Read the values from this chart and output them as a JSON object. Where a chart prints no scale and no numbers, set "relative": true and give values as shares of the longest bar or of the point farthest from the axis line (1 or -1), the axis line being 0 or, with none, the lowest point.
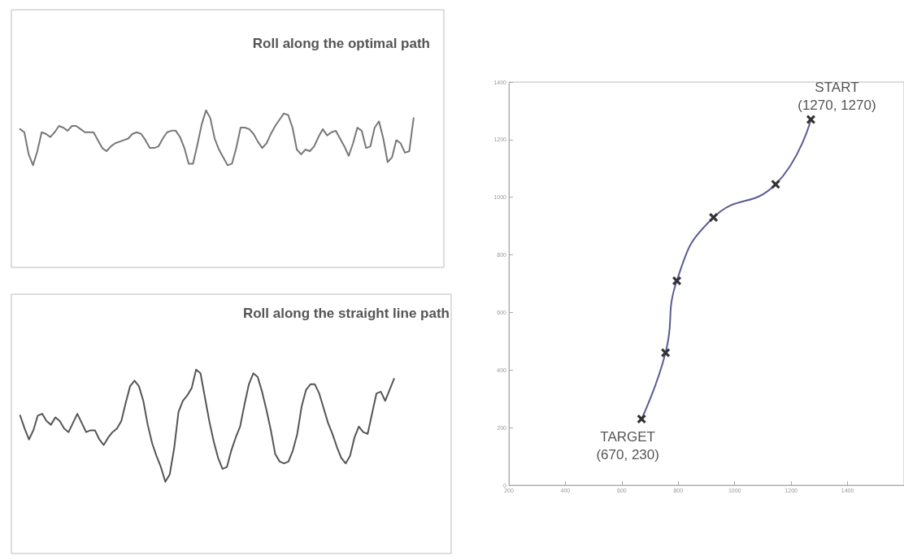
{
  "chart_data": [
    {
      "type": "line",
      "title": "Roll along the optimal path",
      "relative": true,
      "categories": [
        null,
        null,
        null,
        null,
        null,
        null,
        null,
        null,
        null,
        null,
        null,
        null,
        null,
        null,
        null,
        null,
        null,
        null,
        null,
        null,
        null,
        null,
        null,
        null,
        null,
        null,
        null,
        null,
        null,
        null,
        null,
        null,
        null,
        null,
        null,
        null,
        null,
        null,
        null,
        null,
        null,
        null,
        null,
        null,
        null,
        null,
        null,
        null,
        null,
        null,
        null,
        null,
        null,
        null,
        null,
        null,
        null,
        null,
        null,
        null,
        null,
        null,
        null,
        null,
        null,
        null,
        null,
        null,
        null,
        null,
        null,
        null,
        null,
        null,
        null,
        null,
        null,
        null,
        null,
        null,
        null,
        null,
        null,
        null,
        null,
        null,
        null,
        null,
        null,
        null,
        null,
        null,
        null,
        null,
        null,
        null,
        null,
        null,
        null,
        null,
        null
      ],
      "series": [
        {
          "color": "#777777",
          "values": [
            null,
            null,
            0.88,
            0.86,
            0.72,
            0.65,
            0.74,
            0.86,
            0.85,
            0.83,
            0.86,
            0.9,
            0.89,
            0.87,
            0.9,
            0.9,
            0.88,
            0.86,
            0.86,
            0.86,
            0.81,
            0.76,
            0.74,
            0.77,
            0.79,
            0.8,
            0.81,
            0.82,
            0.85,
            0.86,
            0.85,
            0.81,
            0.76,
            0.76,
            0.77,
            0.82,
            0.86,
            0.87,
            0.87,
            0.83,
            0.76,
            0.66,
            0.66,
            0.78,
            0.91,
            1.0,
            0.95,
            0.82,
            0.75,
            0.7,
            0.65,
            0.66,
            0.76,
            0.89,
            0.89,
            0.88,
            0.85,
            0.8,
            0.76,
            0.79,
            0.85,
            0.9,
            0.94,
            0.98,
            0.97,
            0.89,
            0.75,
            0.72,
            0.75,
            0.74,
            0.77,
            0.83,
            0.88,
            0.84,
            0.86,
            0.87,
            0.82,
            0.77,
            0.71,
            0.79,
            0.89,
            0.87,
            0.76,
            0.77,
            0.89,
            0.93,
            0.82,
            0.67,
            0.7,
            0.81,
            0.79,
            0.73,
            0.74,
            0.95,
            null,
            null,
            null,
            null,
            null,
            null,
            null
          ]
        }
      ]
    },
    {
      "type": "line",
      "title": "Roll along the straight line path",
      "relative": true,
      "categories": [
        null,
        null,
        null,
        null,
        null,
        null,
        null,
        null,
        null,
        null,
        null,
        null,
        null,
        null,
        null,
        null,
        null,
        null,
        null,
        null,
        null,
        null,
        null,
        null,
        null,
        null,
        null,
        null,
        null,
        null,
        null,
        null,
        null,
        null,
        null,
        null,
        null,
        null,
        null,
        null,
        null,
        null,
        null,
        null,
        null,
        null,
        null,
        null,
        null,
        null,
        null,
        null,
        null,
        null,
        null,
        null,
        null,
        null,
        null,
        null,
        null,
        null,
        null,
        null,
        null,
        null,
        null,
        null,
        null,
        null,
        null,
        null,
        null,
        null,
        null,
        null,
        null,
        null,
        null,
        null,
        null,
        null,
        null,
        null,
        null,
        null,
        null,
        null,
        null,
        null,
        null,
        null,
        null,
        null,
        null,
        null,
        null,
        null,
        null,
        null,
        null
      ],
      "series": [
        {
          "color": "#555555",
          "values": [
            null,
            null,
            0.75,
            0.68,
            0.62,
            0.67,
            0.75,
            0.76,
            0.72,
            0.7,
            0.74,
            0.72,
            0.68,
            0.66,
            0.71,
            0.76,
            0.71,
            0.66,
            0.67,
            0.67,
            0.62,
            0.59,
            0.63,
            0.66,
            0.68,
            0.72,
            0.82,
            0.91,
            0.94,
            0.91,
            0.83,
            0.7,
            0.6,
            0.53,
            0.47,
            0.39,
            0.43,
            0.57,
            0.77,
            0.83,
            0.86,
            0.9,
            1.0,
            0.98,
            0.85,
            0.72,
            0.61,
            0.52,
            0.46,
            0.47,
            0.56,
            0.63,
            0.69,
            0.81,
            0.92,
            0.98,
            0.96,
            0.88,
            0.78,
            0.67,
            0.54,
            0.5,
            0.49,
            0.5,
            0.56,
            0.65,
            0.8,
            0.89,
            0.92,
            0.92,
            0.87,
            0.79,
            0.71,
            0.65,
            0.58,
            0.52,
            0.49,
            0.53,
            0.63,
            0.69,
            0.66,
            0.65,
            0.76,
            0.87,
            0.88,
            0.83,
            0.89,
            0.95,
            null,
            null,
            null,
            null,
            null,
            null,
            null,
            null,
            null,
            null,
            null,
            null,
            null
          ]
        }
      ]
    },
    {
      "type": "line",
      "marker": "cross",
      "x": [
        670,
        755,
        795,
        925,
        1145,
        1270
      ],
      "series": [
        {
          "color": "#5c5c94",
          "values": [
            230,
            460,
            710,
            930,
            1045,
            1270
          ]
        }
      ],
      "xlim": [
        200,
        1600
      ],
      "xticks": [
        200,
        400,
        600,
        800,
        1000,
        1200,
        1400
      ],
      "ylim": [
        0,
        1400
      ],
      "yticks": [
        0,
        200,
        400,
        600,
        800,
        1000,
        1200,
        1400
      ],
      "annotations": [
        {
          "text": "START\n(1270, 1270)",
          "x": 1270,
          "y": 1270
        },
        {
          "text": "TARGET\n(670, 230)",
          "x": 670,
          "y": 230
        }
      ]
    }
  ]
}
